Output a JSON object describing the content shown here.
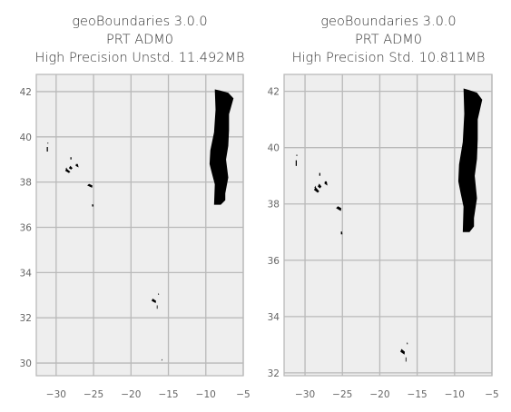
{
  "chart_data": [
    {
      "type": "map",
      "title": [
        "geoBoundaries 3.0.0",
        "PRT ADM0",
        "High Precision Unstd. 11.492MB"
      ],
      "xlim": [
        -32.65,
        -5.0
      ],
      "ylim": [
        29.44,
        42.76
      ],
      "xticks": [
        {
          "value": -30,
          "label": "−30"
        },
        {
          "value": -25,
          "label": "−25"
        },
        {
          "value": -20,
          "label": "−20"
        },
        {
          "value": -15,
          "label": "−15"
        },
        {
          "value": -10,
          "label": "−10"
        },
        {
          "value": -5,
          "label": "−5"
        }
      ],
      "yticks": [
        30,
        32,
        34,
        36,
        38,
        40,
        42
      ],
      "grid": true
    },
    {
      "type": "map",
      "title": [
        "geoBoundaries 3.0.0",
        "PRT ADM0",
        "High Precision Std. 10.811MB"
      ],
      "xlim": [
        -32.8,
        -5.0
      ],
      "ylim": [
        31.9,
        42.6
      ],
      "xticks": [
        {
          "value": -30,
          "label": "−30"
        },
        {
          "value": -25,
          "label": "−25"
        },
        {
          "value": -20,
          "label": "−20"
        },
        {
          "value": -15,
          "label": "−15"
        },
        {
          "value": -10,
          "label": "−10"
        },
        {
          "value": -5,
          "label": "−5"
        }
      ],
      "yticks": [
        32,
        34,
        36,
        38,
        40,
        42
      ],
      "grid": true
    }
  ]
}
